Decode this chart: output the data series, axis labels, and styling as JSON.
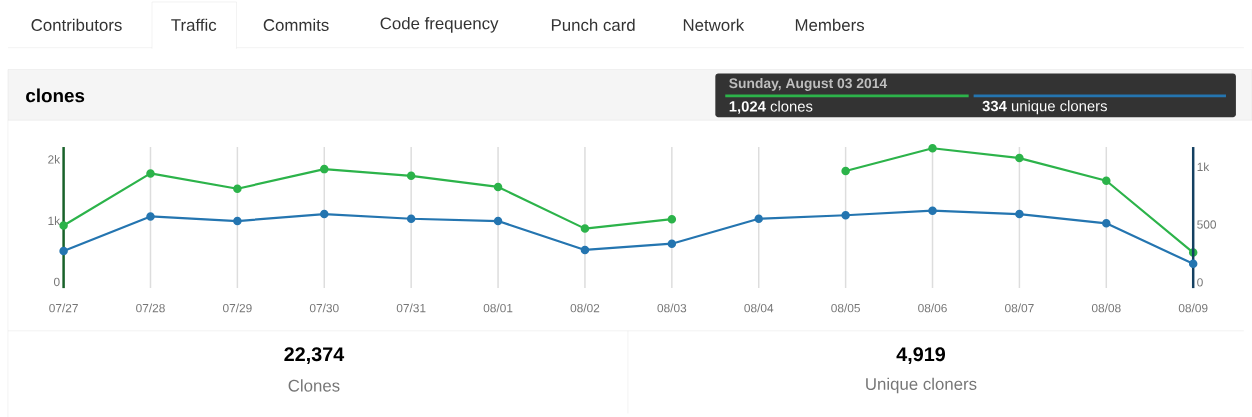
{
  "chart_data": {
    "type": "line",
    "title": "clones",
    "categories": [
      "07/27",
      "07/28",
      "07/29",
      "07/30",
      "07/31",
      "08/01",
      "08/02",
      "08/03",
      "08/04",
      "08/05",
      "08/06",
      "08/07",
      "08/08",
      "08/09"
    ],
    "series": [
      {
        "color": "#2cb34a",
        "values": [
          920,
          1770,
          1520,
          1840,
          1730,
          1550,
          870,
          1024,
          null,
          1810,
          2180,
          2020,
          1650,
          480
        ]
      },
      {
        "color": "#2475b0",
        "axis": "y2",
        "values": [
          270,
          570,
          530,
          590,
          550,
          530,
          280,
          334,
          550,
          580,
          620,
          590,
          510,
          160
        ]
      }
    ],
    "ylim": [
      -100,
      2200
    ],
    "yticks": [
      0,
      {
        "value": 1000,
        "label": "1k"
      },
      {
        "value": 2000,
        "label": "2k"
      }
    ],
    "y2lim": [
      -50,
      1170
    ],
    "y2ticks": [
      0,
      500,
      {
        "value": 1000,
        "label": "1k"
      }
    ],
    "grid": "x",
    "marker": "circle",
    "line_style": "solid",
    "annotations": [
      "Contributors",
      "Traffic",
      "Commits",
      "Code frequency",
      "Punch card",
      "Network",
      "Members",
      "Sunday, August 03 2014",
      "**1,024** clones",
      "**334** unique cloners",
      "22,374",
      "Clones",
      "4,919",
      "Unique cloners"
    ]
  }
}
